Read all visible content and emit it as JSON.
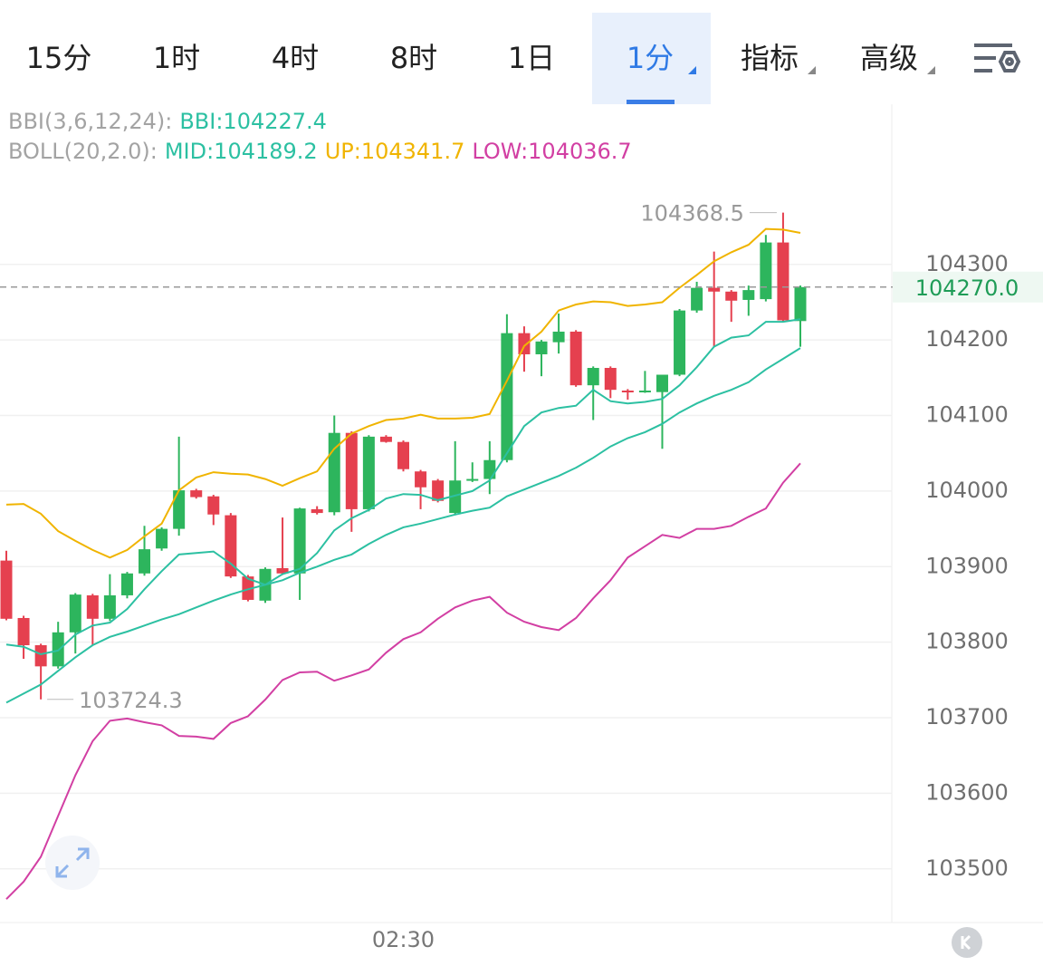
{
  "tabs": [
    "15分",
    "1时",
    "4时",
    "8时",
    "1日",
    "1分",
    "指标",
    "高级"
  ],
  "active_tab": 5,
  "chart_data": {
    "type": "candlestick",
    "indicator_headers": [
      "BBI(3,6,12,24):",
      "BOLL(20,2.0):"
    ],
    "x": [
      null,
      null,
      null,
      null,
      null,
      null,
      null,
      null,
      null,
      null,
      null,
      null,
      null,
      null,
      null,
      null,
      null,
      null,
      null,
      null,
      null,
      null,
      null,
      "02:30",
      null,
      null,
      null,
      null,
      null,
      null,
      null,
      null,
      null,
      null,
      null,
      null,
      null,
      null,
      null,
      null,
      null,
      null,
      null,
      null,
      null,
      null,
      null
    ],
    "open": [
      103908,
      103832,
      103796,
      103768,
      103813,
      103862,
      103831,
      103862,
      103891,
      103924,
      103950,
      104001,
      103993,
      103968,
      103887,
      103855,
      103898,
      103891,
      103976,
      103972,
      104077,
      103976,
      104072,
      104065,
      104026,
      104014,
      103971,
      104014,
      104016,
      104041,
      104209,
      104181,
      104197,
      104211,
      104140,
      104163,
      104133,
      104132,
      104131,
      104154,
      104239,
      104269,
      104264,
      104253,
      104254,
      104329,
      104225
    ],
    "high": [
      103921,
      103835,
      103798,
      103827,
      103865,
      103864,
      103890,
      103893,
      103954,
      103952,
      104072,
      104003,
      103995,
      103971,
      103889,
      103899,
      103965,
      103978,
      103980,
      104100,
      104079,
      104074,
      104074,
      104067,
      104028,
      104016,
      104066,
      104038,
      104066,
      104234,
      104218,
      104200,
      104235,
      104213,
      104165,
      104165,
      104135,
      104159,
      104154,
      104241,
      104277,
      104317,
      104266,
      104272,
      104339,
      104368.5,
      104272
    ],
    "low": [
      103829,
      103778,
      103724.3,
      103765,
      103785,
      103796,
      103828,
      103858,
      103888,
      103921,
      103941,
      103990,
      103955,
      103885,
      103854,
      103852,
      103889,
      103856,
      103969,
      103968,
      103946,
      103973,
      104064,
      104026,
      103976,
      103985,
      103968,
      104012,
      103996,
      104038,
      104158,
      104152,
      104182,
      104138,
      104094,
      104123,
      104121,
      104130,
      104056,
      104152,
      104236,
      104191,
      104224,
      104232,
      104251,
      104224,
      104191
    ],
    "close": [
      103831,
      103796,
      103768,
      103813,
      103863,
      103831,
      103862,
      103891,
      103923,
      103950,
      104001,
      103992,
      103969,
      103887,
      103856,
      103897,
      103891,
      103977,
      103971,
      104077,
      103976,
      104072,
      104065,
      104029,
      104005,
      103987,
      104014,
      104016,
      104041,
      104209,
      104181,
      104198,
      104211,
      104140,
      104163,
      104134,
      104131,
      104133,
      104154,
      104239,
      104269,
      104264,
      104252,
      104266,
      104329,
      104226,
      104270
    ],
    "up_color": "#2db55d",
    "down_color": "#e5404f",
    "last_price_label": "104270.0",
    "series": [
      {
        "name": "BBI",
        "legend": "BBI:104227.4",
        "color": "#2cc0a2",
        "values": [
          103797,
          103794,
          103784,
          103789,
          103810,
          103822,
          103826,
          103844,
          103870,
          103894,
          103916,
          103918,
          103920,
          103904,
          103884,
          103876,
          103890,
          103897,
          103918,
          103948,
          103964,
          103975,
          103990,
          103996,
          103995,
          103988,
          103994,
          104000,
          104014,
          104050,
          104086,
          104104,
          104110,
          104113,
          104134,
          104119,
          104116,
          104118,
          104122,
          104140,
          104164,
          104191,
          104203,
          104206,
          104224,
          104224,
          104227.4
        ]
      },
      {
        "name": "MID",
        "legend": "MID:104189.2",
        "color": "#2cc0a2",
        "values": [
          103720,
          103732,
          103744,
          103762,
          103780,
          103796,
          103807,
          103814,
          103822,
          103830,
          103837,
          103846,
          103855,
          103863,
          103870,
          103876,
          103882,
          103892,
          103900,
          103909,
          103916,
          103930,
          103942,
          103952,
          103957,
          103963,
          103969,
          103974,
          103978,
          103993,
          104002,
          104011,
          104020,
          104031,
          104044,
          104059,
          104070,
          104078,
          104089,
          104104,
          104116,
          104126,
          104134,
          104144,
          104161,
          104175,
          104189.2
        ]
      },
      {
        "name": "UP",
        "legend": "UP:104341.7",
        "color": "#f0b400",
        "values": [
          103982,
          103983,
          103970,
          103947,
          103934,
          103922,
          103912,
          103922,
          103940,
          103957,
          104001,
          104018,
          104025,
          104023,
          104022,
          104016,
          104007,
          104017,
          104026,
          104056,
          104076,
          104086,
          104094,
          104096,
          104101,
          104096,
          104096,
          104097,
          104102,
          104146,
          104192,
          104211,
          104239,
          104247,
          104251,
          104250,
          104245,
          104247,
          104250,
          104269,
          104286,
          104304,
          104316,
          104326,
          104347,
          104346,
          104341.7
        ]
      },
      {
        "name": "LOW",
        "legend": "LOW:104036.7",
        "color": "#d23fa3",
        "values": [
          103460,
          103483,
          103516,
          103570,
          103624,
          103669,
          103696,
          103699,
          103694,
          103690,
          103676,
          103675,
          103672,
          103693,
          103702,
          103724,
          103750,
          103760,
          103761,
          103749,
          103756,
          103764,
          103786,
          103804,
          103813,
          103831,
          103846,
          103855,
          103860,
          103839,
          103827,
          103820,
          103816,
          103832,
          103858,
          103882,
          103912,
          103927,
          103942,
          103938,
          103950,
          103950,
          103954,
          103966,
          103977,
          104011,
          104036.7
        ]
      }
    ],
    "ylim": [
      103429,
      104512
    ],
    "yticks": [
      103500,
      103600,
      103700,
      103800,
      103900,
      104000,
      104100,
      104200,
      104300
    ],
    "grid": true
  }
}
